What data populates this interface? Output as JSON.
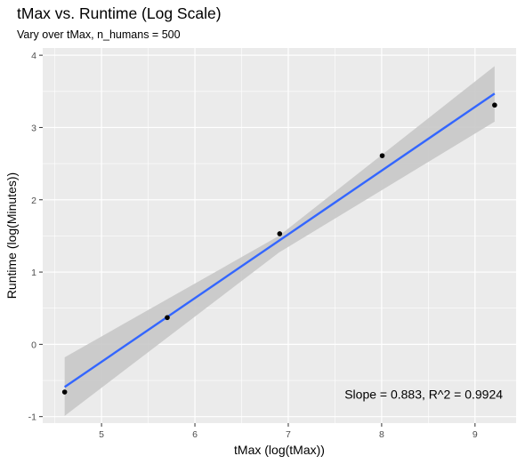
{
  "chart_data": {
    "type": "scatter",
    "title": "tMax vs. Runtime (Log Scale)",
    "subtitle": "Vary over tMax, n_humans = 500",
    "xlabel": "tMax (log(tMax))",
    "ylabel": "Runtime (log(Minutes))",
    "xlim": [
      4.37,
      9.44
    ],
    "ylim": [
      -1.09,
      4.1
    ],
    "x_ticks": [
      5,
      6,
      7,
      8,
      9
    ],
    "y_ticks": [
      -1,
      0,
      1,
      2,
      3,
      4
    ],
    "grid": true,
    "points": [
      {
        "x": 4.605,
        "y": -0.66
      },
      {
        "x": 5.704,
        "y": 0.37
      },
      {
        "x": 6.908,
        "y": 1.53
      },
      {
        "x": 8.006,
        "y": 2.61
      },
      {
        "x": 9.21,
        "y": 3.31
      }
    ],
    "fit": {
      "method": "linear",
      "line": [
        {
          "x": 4.605,
          "y": -0.59
        },
        {
          "x": 9.21,
          "y": 3.47
        }
      ],
      "ci_band": [
        {
          "x": 4.605,
          "lower": -0.99,
          "upper": -0.18
        },
        {
          "x": 6.9,
          "lower": 1.27,
          "upper": 1.5
        },
        {
          "x": 9.21,
          "lower": 3.08,
          "upper": 3.85
        }
      ],
      "line_color": "#3366FF",
      "band_color": "#C8C8C8"
    },
    "annotation": {
      "text": "Slope = 0.883, R^2 = 0.9924",
      "x": 8.45,
      "y": -0.69
    },
    "colors": {
      "panel": "#EBEBEB",
      "grid": "#FFFFFF",
      "point": "#000000"
    }
  }
}
